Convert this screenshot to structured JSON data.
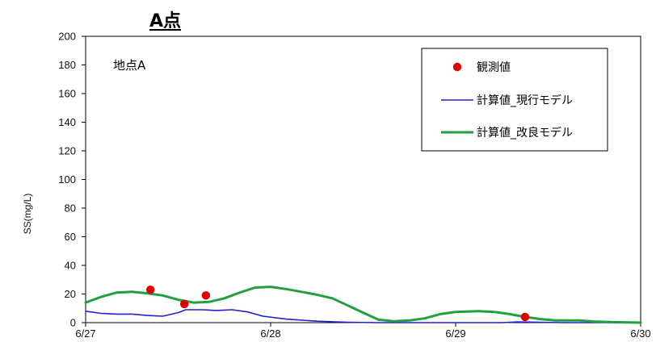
{
  "title": "A点",
  "chart_data": {
    "type": "line",
    "title": "A点",
    "annotation": "地点A",
    "xlabel": "",
    "ylabel": "SS(mg/L)",
    "xlim": [
      "2000-06-27",
      "2000-06-30"
    ],
    "ylim": [
      0,
      200
    ],
    "x_ticks": [
      "6/27",
      "6/28",
      "6/29",
      "6/30"
    ],
    "y_ticks": [
      0,
      20,
      40,
      60,
      80,
      100,
      120,
      140,
      160,
      180,
      200
    ],
    "grid": false,
    "legend_position": "top-right",
    "series": [
      {
        "name": "観測値",
        "kind": "scatter",
        "color": "#e00000",
        "points": [
          {
            "x": "2000-06-27 08:24",
            "y": 23
          },
          {
            "x": "2000-06-27 12:48",
            "y": 13
          },
          {
            "x": "2000-06-27 15:36",
            "y": 19
          },
          {
            "x": "2000-06-29 09:00",
            "y": 4
          }
        ]
      },
      {
        "name": "計算値_現行モデル",
        "kind": "line",
        "color": "#2020d0",
        "points": [
          {
            "x": "2000-06-27 00:00",
            "y": 8
          },
          {
            "x": "2000-06-27 02:00",
            "y": 6.5
          },
          {
            "x": "2000-06-27 04:00",
            "y": 6
          },
          {
            "x": "2000-06-27 06:00",
            "y": 6
          },
          {
            "x": "2000-06-27 08:00",
            "y": 5
          },
          {
            "x": "2000-06-27 10:00",
            "y": 4.5
          },
          {
            "x": "2000-06-27 12:00",
            "y": 7
          },
          {
            "x": "2000-06-27 13:00",
            "y": 9
          },
          {
            "x": "2000-06-27 15:00",
            "y": 9
          },
          {
            "x": "2000-06-27 17:00",
            "y": 8.5
          },
          {
            "x": "2000-06-27 19:00",
            "y": 9
          },
          {
            "x": "2000-06-27 21:00",
            "y": 7.5
          },
          {
            "x": "2000-06-27 23:00",
            "y": 4.5
          },
          {
            "x": "2000-06-28 02:00",
            "y": 2.5
          },
          {
            "x": "2000-06-28 06:00",
            "y": 1
          },
          {
            "x": "2000-06-28 10:00",
            "y": 0.3
          },
          {
            "x": "2000-06-28 14:00",
            "y": 0
          },
          {
            "x": "2000-06-28 18:00",
            "y": 0
          },
          {
            "x": "2000-06-29 00:00",
            "y": 0
          },
          {
            "x": "2000-06-29 06:00",
            "y": 0
          },
          {
            "x": "2000-06-29 08:00",
            "y": 0.5
          },
          {
            "x": "2000-06-29 11:00",
            "y": 0.3
          },
          {
            "x": "2000-06-29 14:00",
            "y": 0
          },
          {
            "x": "2000-06-30 00:00",
            "y": 0
          }
        ]
      },
      {
        "name": "計算値_改良モデル",
        "kind": "line",
        "color": "#20a040",
        "points": [
          {
            "x": "2000-06-27 00:00",
            "y": 14
          },
          {
            "x": "2000-06-27 02:00",
            "y": 18
          },
          {
            "x": "2000-06-27 04:00",
            "y": 21
          },
          {
            "x": "2000-06-27 06:00",
            "y": 21.5
          },
          {
            "x": "2000-06-27 08:00",
            "y": 20.5
          },
          {
            "x": "2000-06-27 10:00",
            "y": 19
          },
          {
            "x": "2000-06-27 12:00",
            "y": 16
          },
          {
            "x": "2000-06-27 14:00",
            "y": 14
          },
          {
            "x": "2000-06-27 16:00",
            "y": 14.5
          },
          {
            "x": "2000-06-27 18:00",
            "y": 17
          },
          {
            "x": "2000-06-27 20:00",
            "y": 21
          },
          {
            "x": "2000-06-27 22:00",
            "y": 24.5
          },
          {
            "x": "2000-06-28 00:00",
            "y": 25
          },
          {
            "x": "2000-06-28 02:00",
            "y": 23.5
          },
          {
            "x": "2000-06-28 04:00",
            "y": 21.5
          },
          {
            "x": "2000-06-28 06:00",
            "y": 19.5
          },
          {
            "x": "2000-06-28 08:00",
            "y": 17
          },
          {
            "x": "2000-06-28 10:00",
            "y": 12
          },
          {
            "x": "2000-06-28 12:00",
            "y": 7
          },
          {
            "x": "2000-06-28 14:00",
            "y": 2
          },
          {
            "x": "2000-06-28 16:00",
            "y": 1
          },
          {
            "x": "2000-06-28 18:00",
            "y": 1.5
          },
          {
            "x": "2000-06-28 20:00",
            "y": 3
          },
          {
            "x": "2000-06-28 22:00",
            "y": 6
          },
          {
            "x": "2000-06-29 00:00",
            "y": 7.5
          },
          {
            "x": "2000-06-29 03:00",
            "y": 8
          },
          {
            "x": "2000-06-29 05:00",
            "y": 7.5
          },
          {
            "x": "2000-06-29 07:00",
            "y": 6
          },
          {
            "x": "2000-06-29 09:00",
            "y": 4
          },
          {
            "x": "2000-06-29 11:00",
            "y": 2.5
          },
          {
            "x": "2000-06-29 13:00",
            "y": 1.5
          },
          {
            "x": "2000-06-29 16:00",
            "y": 1.5
          },
          {
            "x": "2000-06-29 18:00",
            "y": 0.8
          },
          {
            "x": "2000-06-29 21:00",
            "y": 0.3
          },
          {
            "x": "2000-06-30 00:00",
            "y": 0
          }
        ]
      }
    ]
  }
}
